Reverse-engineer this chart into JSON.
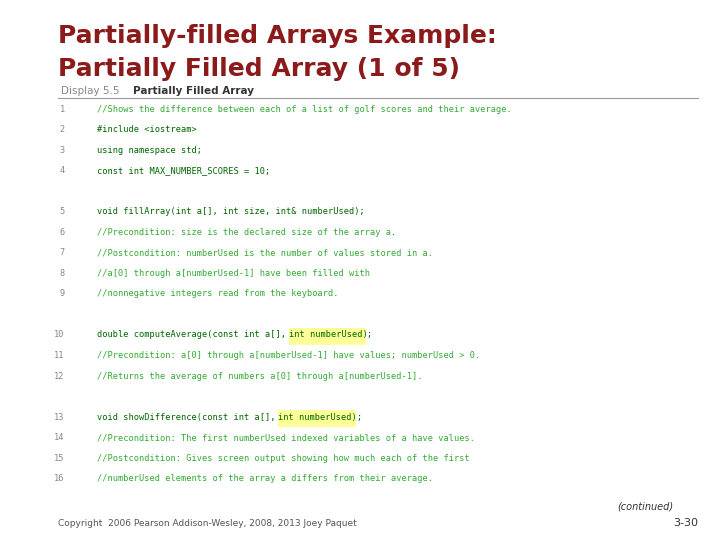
{
  "title_line1": "Partially-filled Arrays Example:",
  "title_line2": "Partially Filled Array (1 of 5)",
  "title_color": "#8B1A1A",
  "display_label": "Display 5.5",
  "display_title": "Partially Filled Array",
  "bg_color": "#ffffff",
  "line_num_color": "#888888",
  "keyword_color": "#006600",
  "comment_color": "#33AA33",
  "highlight_color": "#FFFF99",
  "footer_text": "Copyright  2006 Pearson Addison-Wesley, 2008, 2013 Joey Paquet",
  "slide_num": "3-30",
  "code_lines": [
    {
      "num": "1",
      "text": "//Shows the difference between each of a list of golf scores and their average."
    },
    {
      "num": "2",
      "text": "#include <iostream>"
    },
    {
      "num": "3",
      "text": "using namespace std;"
    },
    {
      "num": "4",
      "text": "const int MAX_NUMBER_SCORES = 10;"
    },
    {
      "num": "",
      "text": ""
    },
    {
      "num": "5",
      "text": "void fillArray(int a[], int size, int& numberUsed);"
    },
    {
      "num": "6",
      "text": "//Precondition: size is the declared size of the array a."
    },
    {
      "num": "7",
      "text": "//Postcondition: numberUsed is the number of values stored in a."
    },
    {
      "num": "8",
      "text": "//a[0] through a[numberUsed-1] have been filled with"
    },
    {
      "num": "9",
      "text": "//nonnegative integers read from the keyboard."
    },
    {
      "num": "",
      "text": ""
    },
    {
      "num": "10",
      "text": "double computeAverage(const int a[], int numberUsed);"
    },
    {
      "num": "11",
      "text": "//Precondition: a[0] through a[numberUsed-1] have values; numberUsed > 0."
    },
    {
      "num": "12",
      "text": "//Returns the average of numbers a[0] through a[numberUsed-1]."
    },
    {
      "num": "",
      "text": ""
    },
    {
      "num": "13",
      "text": "void showDifference(const int a[], int numberUsed);"
    },
    {
      "num": "14",
      "text": "//Precondition: The first numberUsed indexed variables of a have values."
    },
    {
      "num": "15",
      "text": "//Postcondition: Gives screen output showing how much each of the first"
    },
    {
      "num": "16",
      "text": "//numberUsed elements of the array a differs from their average."
    }
  ],
  "highlight_segments": [
    {
      "line_idx": 11,
      "start_text": "double computeAverage(const int a[], ",
      "highlight": "int numberUsed)",
      "end_text": ";"
    },
    {
      "line_idx": 15,
      "start_text": "void showDifference(const int a[], ",
      "highlight": "int numberUsed)",
      "end_text": ";"
    }
  ]
}
